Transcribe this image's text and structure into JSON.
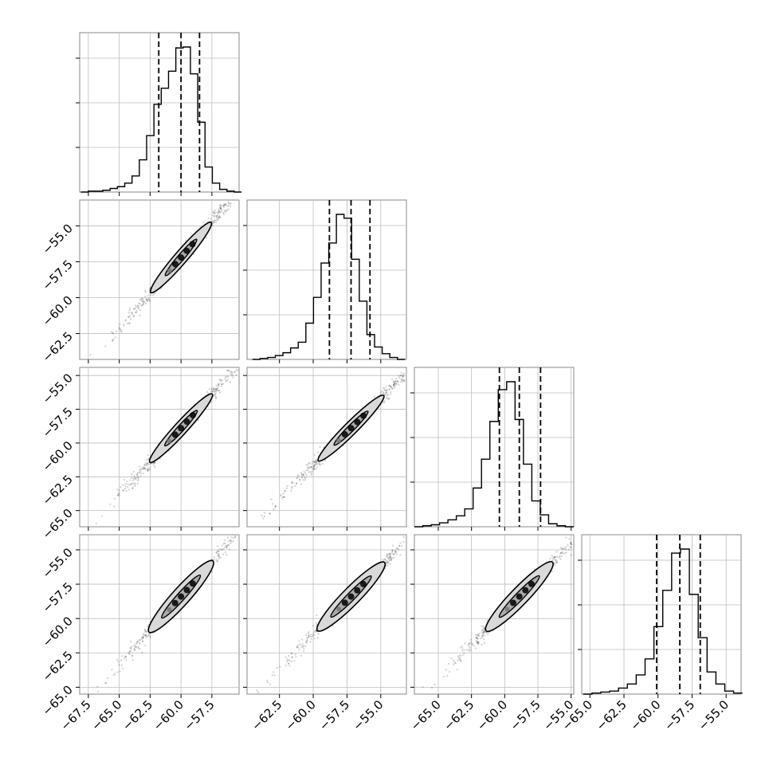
{
  "chart_data": {
    "type": "corner",
    "grid": true,
    "title": "",
    "parameters": [
      {
        "ticks": [
          -67.5,
          -65.0,
          -62.5,
          -60.0,
          -57.5
        ],
        "tick_labels": [
          "−67.5",
          "−65.0",
          "−62.5",
          "−60.0",
          "−57.5"
        ]
      },
      {
        "ticks": [
          -62.5,
          -60.0,
          -57.5,
          -55.0
        ],
        "tick_labels": [
          "−62.5",
          "−60.0",
          "−57.5",
          "−55.0"
        ]
      },
      {
        "ticks": [
          -65.0,
          -62.5,
          -60.0,
          -57.5,
          -55.0
        ],
        "tick_labels": [
          "−65.0",
          "−62.5",
          "−60.0",
          "−57.5",
          "−55.0"
        ]
      },
      {
        "ticks": [
          -65.0,
          -62.5,
          -60.0,
          -57.5,
          -55.0
        ],
        "tick_labels": [
          "−65.0",
          "−62.5",
          "−60.0",
          "−57.5",
          "−55.0"
        ]
      }
    ],
    "row_tick_labels": [
      [],
      [
        "−55.0",
        "−57.5",
        "−60.0",
        "−62.5"
      ],
      [
        "−55.0",
        "−57.5",
        "−60.0",
        "−62.5",
        "−65.0"
      ],
      [
        "−55.0",
        "−57.5",
        "−60.0",
        "−62.5",
        "−65.0"
      ]
    ],
    "histograms": [
      {
        "range": [
          -68.1,
          -55.1
        ],
        "counts": [
          0,
          1,
          1,
          2,
          4,
          6,
          10,
          18,
          36,
          63,
          98,
          116,
          135,
          161,
          162,
          132,
          78,
          28,
          10,
          3,
          1,
          0
        ],
        "quantiles": [
          -61.8,
          -60.0,
          -58.5
        ]
      },
      {
        "range": [
          -64.5,
          -53.2
        ],
        "counts": [
          0,
          1,
          2,
          4,
          7,
          12,
          18,
          38,
          65,
          101,
          122,
          152,
          148,
          105,
          61,
          26,
          13,
          6,
          2,
          0
        ],
        "quantiles": [
          -58.8,
          -57.2,
          -55.8
        ]
      },
      {
        "range": [
          -66.8,
          -54.8
        ],
        "counts": [
          0,
          1,
          2,
          4,
          7,
          11,
          18,
          39,
          68,
          106,
          138,
          146,
          108,
          63,
          26,
          12,
          3,
          1,
          0
        ],
        "quantiles": [
          -60.4,
          -58.9,
          -57.3
        ]
      },
      {
        "range": [
          -65.5,
          -53.8
        ],
        "counts": [
          0,
          1,
          2,
          3,
          6,
          10,
          19,
          35,
          67,
          103,
          140,
          144,
          99,
          56,
          22,
          10,
          3,
          1
        ],
        "quantiles": [
          -60.1,
          -58.4,
          -56.9
        ]
      }
    ],
    "contour_levels": [
      "1-sigma",
      "2-sigma"
    ],
    "color": "#000000"
  }
}
